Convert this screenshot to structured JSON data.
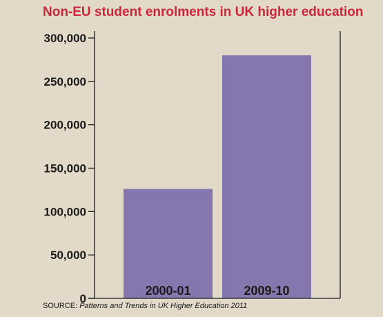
{
  "chart_data": {
    "type": "bar",
    "title": "Non-EU student enrolments in UK higher education",
    "categories": [
      "2000-01",
      "2009-10"
    ],
    "values": [
      126000,
      280000
    ],
    "ylim": [
      0,
      300000
    ],
    "yticks": [
      0,
      50000,
      100000,
      150000,
      200000,
      250000,
      300000
    ],
    "ytick_labels": [
      "0",
      "50,000",
      "100,000",
      "150,000",
      "200,000",
      "250,000",
      "300,000"
    ],
    "xlabel": "",
    "ylabel": "",
    "grid": false,
    "legend": "none",
    "bar_color": "#8577ad",
    "source_prefix": "SOURCE: ",
    "source_title": "Patterns and Trends in UK Higher Education 2011"
  }
}
